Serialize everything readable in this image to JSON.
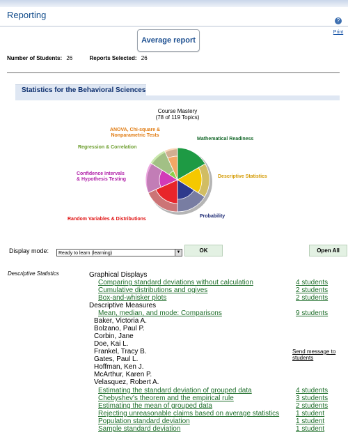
{
  "header": {
    "title": "Reporting",
    "print_label": "Print"
  },
  "average_report_button": "Average report",
  "stats": {
    "students_label": "Number of Students:",
    "students_value": "26",
    "reports_label": "Reports Selected:",
    "reports_value": "26"
  },
  "course": {
    "title": "Statistics for the Behavioral Sciences"
  },
  "chart_data": {
    "type": "pie",
    "title": "Course Mastery",
    "subtitle": "(78 of 119 Topics)",
    "categories": [
      {
        "name": "Mathematical Readiness",
        "color": "#1e9a44"
      },
      {
        "name": "Descriptive Statistics",
        "color": "#f5c800"
      },
      {
        "name": "Probability",
        "color": "#2e3a8c"
      },
      {
        "name": "Random Variables & Distributions",
        "color": "#e8252a"
      },
      {
        "name": "Confidence Intervals & Hypothesis Testing",
        "color": "#d23ab8"
      },
      {
        "name": "Regression & Correlation",
        "color": "#8ccf4b"
      },
      {
        "name": "ANOVA, Chi-square & Nonparametric Tests",
        "color": "#f3a765"
      }
    ],
    "labels": {
      "anova_line1": "ANOVA, Chi-square &",
      "anova_line2": "Nonparametric Tests",
      "regression": "Regression & Correlation",
      "ci_line1": "Confidence Intervals",
      "ci_line2": "& Hypothesis Testing",
      "random": "Random Variables & Distributions",
      "math": "Mathematical Readiness",
      "descriptive": "Descriptive Statistics",
      "probability": "Probability"
    }
  },
  "display_mode": {
    "label": "Display mode:",
    "selected": "Ready to learn (learning)",
    "ok_label": "OK",
    "open_all_label": "Open All"
  },
  "report": {
    "area": "Descriptive Statistics",
    "group1": "Graphical Displays",
    "g1_topics": [
      {
        "name": "Comparing standard deviations without calculation",
        "count": "4 students"
      },
      {
        "name": "Cumulative distributions and ogives",
        "count": "2 students"
      },
      {
        "name": "Box-and-whisker plots",
        "count": "2 students"
      }
    ],
    "group2": "Descriptive Measures",
    "g2_topic": {
      "name": "Mean, median, and mode: Comparisons",
      "count": "9 students"
    },
    "students": [
      "Baker, Victoria A.",
      "Bolzano, Paul P.",
      "Corbin, Jane",
      "Doe, Kai L.",
      "Frankel, Tracy B.",
      "Gates, Paul L.",
      "Hoffman, Ken J.",
      "McArthur, Karen P.",
      "Velasquez, Robert A."
    ],
    "send_message_line1": "Send message to",
    "send_message_line2": "students",
    "g2_more_topics": [
      {
        "name": "Estimating the standard deviation of grouped data",
        "count": "4 students"
      },
      {
        "name": "Chebyshev's theorem and the empirical rule",
        "count": "3 students"
      },
      {
        "name": "Estimating the mean of grouped data",
        "count": "2 students"
      },
      {
        "name": "Rejecting unreasonable claims based on average statistics",
        "count": "1 student"
      },
      {
        "name": "Population standard deviation",
        "count": "1 student"
      },
      {
        "name": "Sample standard deviation",
        "count": "1 student"
      }
    ]
  }
}
